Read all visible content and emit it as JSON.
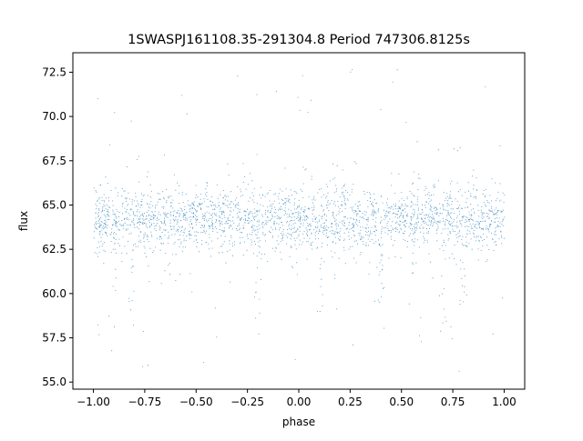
{
  "chart_data": {
    "type": "scatter",
    "title": "1SWASPJ161108.35-291304.8 Period 747306.8125s",
    "xlabel": "phase",
    "ylabel": "flux",
    "xlim": [
      -1.1,
      1.1
    ],
    "ylim": [
      54.6,
      73.6
    ],
    "x_ticks": [
      -1.0,
      -0.75,
      -0.5,
      -0.25,
      0.0,
      0.25,
      0.5,
      0.75,
      1.0
    ],
    "x_tick_labels": [
      "−1.00",
      "−0.75",
      "−0.50",
      "−0.25",
      "0.00",
      "0.25",
      "0.50",
      "0.75",
      "1.00"
    ],
    "y_ticks": [
      55.0,
      57.5,
      60.0,
      62.5,
      65.0,
      67.5,
      70.0,
      72.5
    ],
    "y_tick_labels": [
      "55.0",
      "57.5",
      "60.0",
      "62.5",
      "65.0",
      "67.5",
      "70.0",
      "72.5"
    ],
    "grid": false,
    "series": [
      {
        "color": "#1f77b4",
        "baseline_flux": 64.2,
        "typical_scatter": 1.0,
        "min_flux": 55.6,
        "max_flux": 72.8,
        "phase_range": [
          -1.0,
          1.0
        ],
        "notes_visible": "dense band 62.5–66.5 with vertical streaks of dips to ~58–60 near phase -0.9, -0.2, 0.1, 0.4, 0.8"
      }
    ]
  }
}
